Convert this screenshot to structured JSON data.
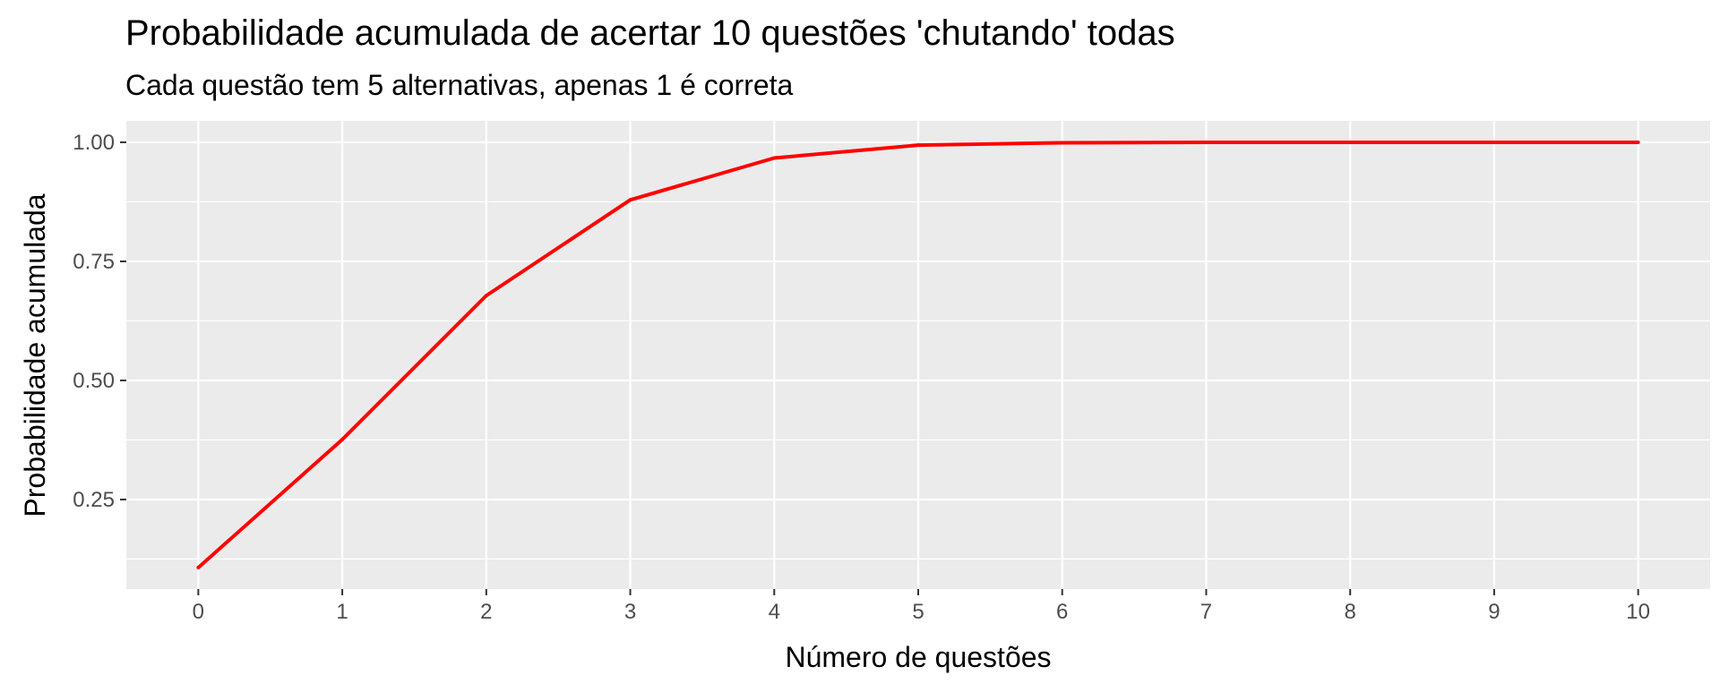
{
  "chart_data": {
    "type": "line",
    "title": "Probabilidade acumulada de acertar 10 questões 'chutando' todas",
    "subtitle": "Cada questão tem 5 alternativas, apenas 1 é correta",
    "xlabel": "Número de questões",
    "ylabel": "Probabilidade acumulada",
    "x": [
      0,
      1,
      2,
      3,
      4,
      5,
      6,
      7,
      8,
      9,
      10
    ],
    "series": [
      {
        "values": [
          0.107,
          0.376,
          0.678,
          0.879,
          0.967,
          0.994,
          0.999,
          1.0,
          1.0,
          1.0,
          1.0
        ],
        "color": "#ff0000"
      }
    ],
    "xlim": [
      -0.5,
      10.5
    ],
    "ylim": [
      0.062,
      1.045
    ],
    "x_ticks": [
      "0",
      "1",
      "2",
      "3",
      "4",
      "5",
      "6",
      "7",
      "8",
      "9",
      "10"
    ],
    "y_ticks": [
      "0.25",
      "0.50",
      "0.75",
      "1.00"
    ],
    "grid": true,
    "legend": "none",
    "panel_color": "#ebebeb",
    "grid_color": "#ffffff"
  }
}
